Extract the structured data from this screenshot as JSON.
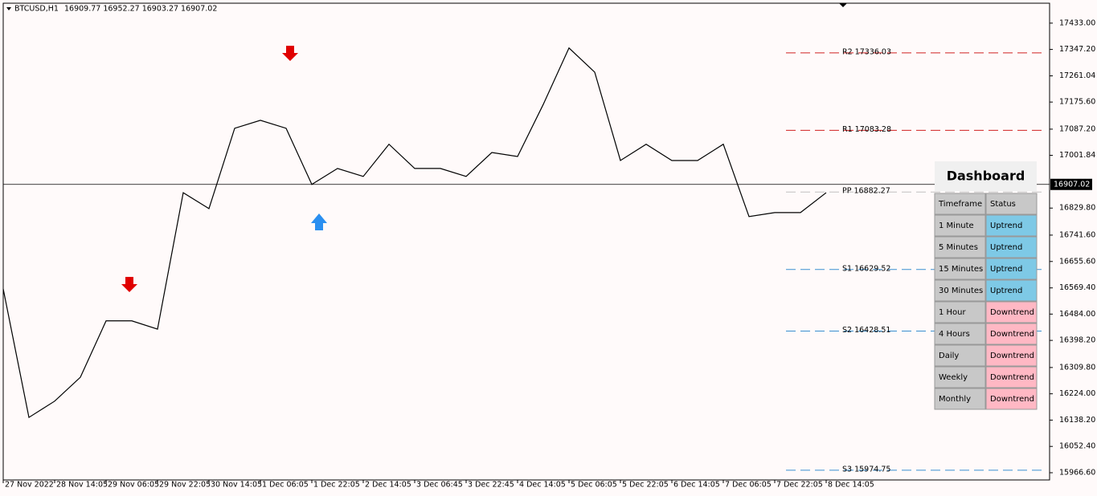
{
  "header": {
    "symbol": "BTCUSD,H1",
    "quote": "16909.77 16952.27 16903.27 16907.02"
  },
  "chart_data": {
    "type": "line",
    "categories": [
      "27 Nov 2022",
      null,
      "28 Nov 14:05",
      null,
      "29 Nov 06:05",
      null,
      "29 Nov 22:05",
      null,
      "30 Nov 14:05",
      null,
      "1 Dec 06:05",
      null,
      "1 Dec 22:05",
      null,
      "2 Dec 14:05",
      null,
      "3 Dec 06:45",
      null,
      "3 Dec 22:45",
      null,
      "4 Dec 14:05",
      null,
      "5 Dec 06:05",
      null,
      "5 Dec 22:05",
      null,
      "6 Dec 14:05",
      null,
      "7 Dec 06:05",
      null,
      "7 Dec 22:05",
      null,
      "8 Dec 14:05"
    ],
    "series": [
      {
        "color": "#000000",
        "values": [
          16566,
          16147,
          16200,
          16278,
          16462,
          16462,
          16435,
          16880,
          16828,
          17090,
          17116,
          17090,
          16907,
          16959,
          16933,
          17038,
          16959,
          16959,
          16933,
          17011,
          16998,
          17168,
          17352,
          17273,
          16985,
          17038,
          16985,
          16985,
          17038,
          16802,
          16815,
          16815,
          16880
        ]
      }
    ],
    "ylim": [
      15943,
      17498
    ],
    "yticks": [
      {
        "value": 15966.6,
        "label": "15966.60"
      },
      {
        "value": 16052.4,
        "label": "16052.40"
      },
      {
        "value": 16138.2,
        "label": "16138.20"
      },
      {
        "value": 16224,
        "label": "16224.00"
      },
      {
        "value": 16309.8,
        "label": "16309.80"
      },
      {
        "value": 16398.2,
        "label": "16398.20"
      },
      {
        "value": 16484,
        "label": "16484.00"
      },
      {
        "value": 16569.4,
        "label": "16569.40"
      },
      {
        "value": 16655.6,
        "label": "16655.60"
      },
      {
        "value": 16741.6,
        "label": "16741.60"
      },
      {
        "value": 16829.8,
        "label": "16829.80"
      },
      {
        "value": 17001.84,
        "label": "17001.84"
      },
      {
        "value": 17087.2,
        "label": "17087.20"
      },
      {
        "value": 17175.6,
        "label": "17175.60"
      },
      {
        "value": 17261.04,
        "label": "17261.04"
      },
      {
        "value": 17347.2,
        "label": "17347.20"
      },
      {
        "value": 17433,
        "label": "17433.00"
      }
    ],
    "current_price": 16907.02,
    "levels": [
      {
        "value": 17336.03,
        "label": "R2 17336.03",
        "color": "#d02020"
      },
      {
        "value": 17083.28,
        "label": "R1 17083.28",
        "color": "#d02020"
      },
      {
        "value": 16882.27,
        "label": "PP 16882.27",
        "color": "#c0c0c0"
      },
      {
        "value": 16629.52,
        "label": "S1 16629.52",
        "color": "#3a8fd0"
      },
      {
        "value": 16428.51,
        "label": "S2 16428.51",
        "color": "#3a8fd0"
      },
      {
        "value": 15974.75,
        "label": "S3 15974.75",
        "color": "#3a8fd0"
      }
    ]
  },
  "dashboard": {
    "title": "Dashboard",
    "headers": [
      "Timeframe",
      "Status"
    ],
    "rows": [
      [
        "1 Minute",
        "Uptrend"
      ],
      [
        "5 Minutes",
        "Uptrend"
      ],
      [
        "15 Minutes",
        "Uptrend"
      ],
      [
        "30 Minutes",
        "Uptrend"
      ],
      [
        "1 Hour",
        "Downtrend"
      ],
      [
        "4 Hours",
        "Downtrend"
      ],
      [
        "Daily",
        "Downtrend"
      ],
      [
        "Weekly",
        "Downtrend"
      ],
      [
        "Monthly",
        "Downtrend"
      ]
    ]
  }
}
